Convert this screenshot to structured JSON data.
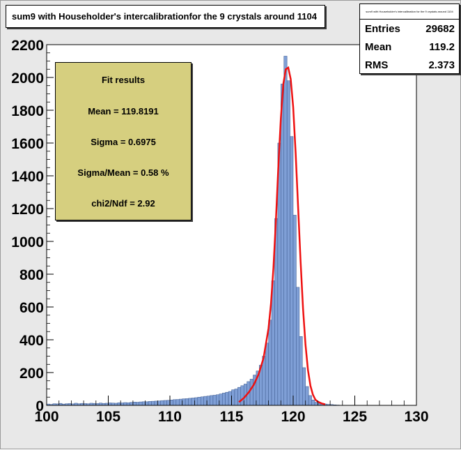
{
  "title": "sum9 with Householder's intercalibrationfor the 9 crystals around 1104",
  "stats": {
    "title": "sum9 with Householder's intercalibration for the 9 crystals around 1104",
    "entries_label": "Entries",
    "entries_value": "29682",
    "mean_label": "Mean",
    "mean_value": "119.2",
    "rms_label": "RMS",
    "rms_value": "2.373"
  },
  "fit": {
    "heading": "Fit results",
    "mean": "Mean  =  119.8191",
    "sigma": "Sigma =  0.6975",
    "sigma_mean": "Sigma/Mean =   0.58 %",
    "chi2": "chi2/Ndf =  2.92"
  },
  "colors": {
    "histogram_fill": "#7f9fd6",
    "fit_curve": "#ee1111",
    "fit_box": "#d6cf7f",
    "frame_bg": "#ffffff",
    "canvas_bg": "#e8e8e8"
  },
  "chart_data": {
    "type": "histogram",
    "xlim": [
      100,
      130
    ],
    "ylim": [
      0,
      2200
    ],
    "xticks": [
      100,
      105,
      110,
      115,
      120,
      125,
      130
    ],
    "yticks": [
      0,
      200,
      400,
      600,
      800,
      1000,
      1200,
      1400,
      1600,
      1800,
      2000,
      2200
    ],
    "bin_width": 0.25,
    "bins_x": [
      100.0,
      100.25,
      100.5,
      100.75,
      101.0,
      101.25,
      101.5,
      101.75,
      102.0,
      102.25,
      102.5,
      102.75,
      103.0,
      103.25,
      103.5,
      103.75,
      104.0,
      104.25,
      104.5,
      104.75,
      105.0,
      105.25,
      105.5,
      105.75,
      106.0,
      106.25,
      106.5,
      106.75,
      107.0,
      107.25,
      107.5,
      107.75,
      108.0,
      108.25,
      108.5,
      108.75,
      109.0,
      109.25,
      109.5,
      109.75,
      110.0,
      110.25,
      110.5,
      110.75,
      111.0,
      111.25,
      111.5,
      111.75,
      112.0,
      112.25,
      112.5,
      112.75,
      113.0,
      113.25,
      113.5,
      113.75,
      114.0,
      114.25,
      114.5,
      114.75,
      115.0,
      115.25,
      115.5,
      115.75,
      116.0,
      116.25,
      116.5,
      116.75,
      117.0,
      117.25,
      117.5,
      117.75,
      118.0,
      118.25,
      118.5,
      118.75,
      119.0,
      119.25,
      119.5,
      119.75,
      120.0,
      120.25,
      120.5,
      120.75,
      121.0,
      121.25,
      121.5,
      121.75,
      122.0,
      122.25,
      122.5,
      122.75,
      123.0,
      123.25,
      123.5
    ],
    "bins_y": [
      8,
      6,
      10,
      9,
      12,
      8,
      10,
      11,
      9,
      13,
      10,
      12,
      11,
      10,
      13,
      12,
      11,
      14,
      12,
      13,
      15,
      14,
      13,
      16,
      15,
      17,
      16,
      18,
      20,
      19,
      21,
      22,
      22,
      24,
      25,
      26,
      27,
      29,
      30,
      31,
      33,
      35,
      36,
      38,
      40,
      41,
      43,
      45,
      47,
      50,
      52,
      55,
      57,
      60,
      62,
      65,
      70,
      75,
      80,
      85,
      95,
      100,
      110,
      120,
      130,
      145,
      160,
      185,
      210,
      245,
      300,
      380,
      520,
      760,
      1140,
      1600,
      1960,
      2130,
      1980,
      1640,
      1160,
      720,
      420,
      230,
      115,
      60,
      33,
      19,
      12,
      10,
      8,
      6,
      5,
      3,
      2
    ],
    "fit": {
      "function": "gaus",
      "mean": 119.8191,
      "sigma": 0.6975,
      "range": [
        115.6,
        122.6
      ],
      "curve_x": [
        115.6,
        116.0,
        116.4,
        116.8,
        117.2,
        117.6,
        118.0,
        118.2,
        118.4,
        118.6,
        118.8,
        119.0,
        119.2,
        119.4,
        119.6,
        119.8,
        120.0,
        120.2,
        120.4,
        120.6,
        120.8,
        121.0,
        121.2,
        121.4,
        121.6,
        121.8,
        122.0,
        122.3,
        122.6
      ],
      "curve_y": [
        20,
        45,
        80,
        125,
        190,
        290,
        470,
        620,
        840,
        1130,
        1460,
        1750,
        1960,
        2050,
        2060,
        1990,
        1820,
        1540,
        1210,
        880,
        590,
        370,
        215,
        120,
        65,
        35,
        22,
        12,
        6
      ]
    }
  }
}
